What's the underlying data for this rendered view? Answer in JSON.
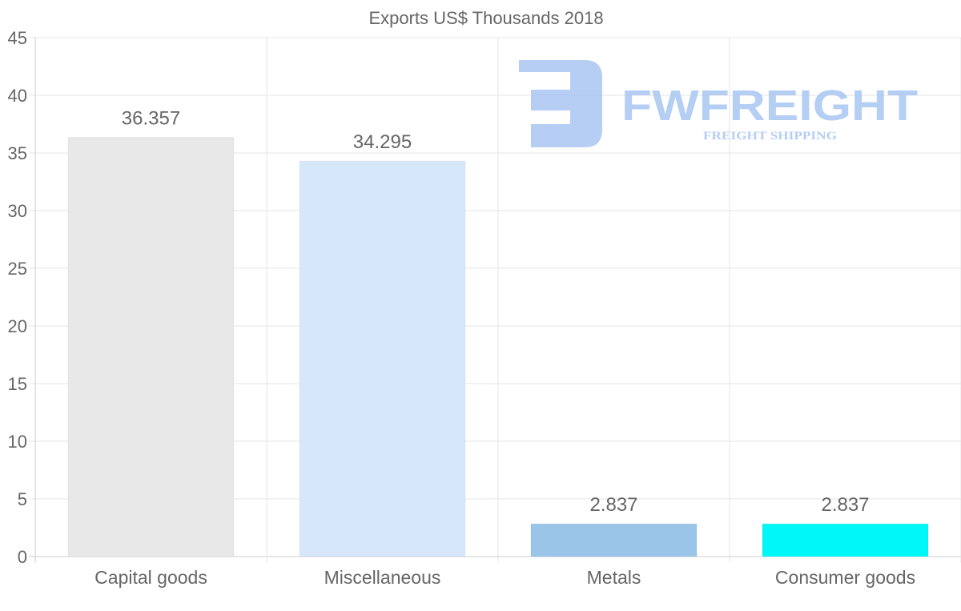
{
  "chart_data": {
    "type": "bar",
    "title": "Exports US$ Thousands 2018",
    "categories": [
      "Capital goods",
      "Miscellaneous",
      "Metals",
      "Consumer goods"
    ],
    "values": [
      36.357,
      34.295,
      2.837,
      2.837
    ],
    "data_labels": [
      "36.357",
      "34.295",
      "2.837",
      "2.837"
    ],
    "colors": [
      "#e8e8e8",
      "#d6e7f9",
      "#9ac4e8",
      "#00f7f7"
    ],
    "xlabel": "",
    "ylabel": "",
    "ylim": [
      0,
      45
    ],
    "yticks": [
      0,
      5,
      10,
      15,
      20,
      25,
      30,
      35,
      40,
      45
    ],
    "grid": true,
    "legend": "none"
  },
  "watermark": {
    "brand": "FWFREIGHT",
    "tagline": "FREIGHT SHIPPING",
    "color": "#a9c6f2"
  }
}
